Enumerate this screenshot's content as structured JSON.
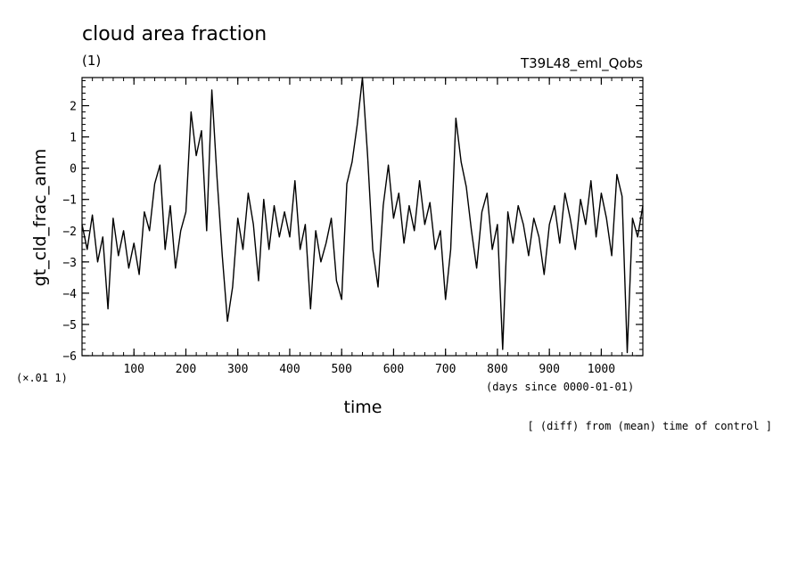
{
  "chart_data": {
    "type": "line",
    "title": "cloud area fraction",
    "units": "(1)",
    "run_label": "T39L48_eml_Qobs",
    "xlabel": "time",
    "x_unit_note": "(days since 0000-01-01)",
    "ylabel": "gt_cld_frac_anm",
    "y_scale_note": "(×.01 1)",
    "footer_note": "[ (diff) from (mean) time of control ]",
    "xlim": [
      0,
      1080
    ],
    "ylim": [
      -6,
      2.9
    ],
    "x_ticks": [
      100,
      200,
      300,
      400,
      500,
      600,
      700,
      800,
      900,
      1000
    ],
    "x_tick_labels": [
      "100",
      "200",
      "300",
      "400",
      "500",
      "600",
      "700",
      "800",
      "900",
      "1000"
    ],
    "y_ticks": [
      -6,
      -5,
      -4,
      -3,
      -2,
      -1,
      0,
      1,
      2
    ],
    "y_tick_labels": [
      "−6",
      "−5",
      "−4",
      "−3",
      "−2",
      "−1",
      "0",
      "1",
      "2"
    ],
    "grid": false,
    "series": [
      {
        "color": "#000000",
        "x": [
          0,
          10,
          20,
          30,
          40,
          50,
          60,
          70,
          80,
          90,
          100,
          110,
          120,
          130,
          140,
          150,
          160,
          170,
          180,
          190,
          200,
          210,
          220,
          230,
          240,
          250,
          260,
          270,
          280,
          290,
          300,
          310,
          320,
          330,
          340,
          350,
          360,
          370,
          380,
          390,
          400,
          410,
          420,
          430,
          440,
          450,
          460,
          470,
          480,
          490,
          500,
          510,
          520,
          530,
          540,
          550,
          560,
          570,
          580,
          590,
          600,
          610,
          620,
          630,
          640,
          650,
          660,
          670,
          680,
          690,
          700,
          710,
          720,
          730,
          740,
          750,
          760,
          770,
          780,
          790,
          800,
          810,
          820,
          830,
          840,
          850,
          860,
          870,
          880,
          890,
          900,
          910,
          920,
          930,
          940,
          950,
          960,
          970,
          980,
          990,
          1000,
          1010,
          1020,
          1030,
          1040,
          1050,
          1060,
          1070,
          1080
        ],
        "y": [
          -1.8,
          -2.6,
          -1.5,
          -3.0,
          -2.2,
          -4.5,
          -1.6,
          -2.8,
          -2.0,
          -3.2,
          -2.4,
          -3.4,
          -1.4,
          -2.0,
          -0.5,
          0.1,
          -2.6,
          -1.2,
          -3.2,
          -2.0,
          -1.4,
          1.8,
          0.4,
          1.2,
          -2.0,
          2.5,
          -0.3,
          -2.8,
          -4.9,
          -3.8,
          -1.6,
          -2.6,
          -0.8,
          -1.8,
          -3.6,
          -1.0,
          -2.6,
          -1.2,
          -2.2,
          -1.4,
          -2.2,
          -0.4,
          -2.6,
          -1.8,
          -4.5,
          -2.0,
          -3.0,
          -2.4,
          -1.6,
          -3.6,
          -4.2,
          -0.5,
          0.2,
          1.4,
          2.9,
          0.4,
          -2.6,
          -3.8,
          -1.2,
          0.1,
          -1.6,
          -0.8,
          -2.4,
          -1.2,
          -2.0,
          -0.4,
          -1.8,
          -1.1,
          -2.6,
          -2.0,
          -4.2,
          -2.6,
          1.6,
          0.2,
          -0.6,
          -2.0,
          -3.2,
          -1.4,
          -0.8,
          -2.6,
          -1.8,
          -5.8,
          -1.4,
          -2.4,
          -1.2,
          -1.8,
          -2.8,
          -1.6,
          -2.2,
          -3.4,
          -1.8,
          -1.2,
          -2.4,
          -0.8,
          -1.6,
          -2.6,
          -1.0,
          -1.8,
          -0.4,
          -2.2,
          -0.8,
          -1.6,
          -2.8,
          -0.2,
          -0.9,
          -5.9,
          -1.6,
          -2.2,
          -1.2
        ]
      }
    ]
  }
}
